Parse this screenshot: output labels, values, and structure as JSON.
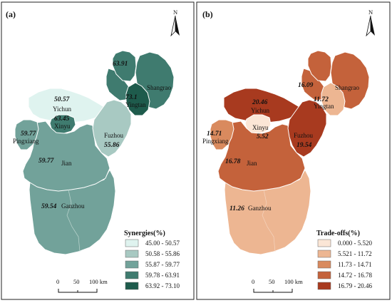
{
  "panels": [
    {
      "tag": "(a)",
      "north": "N",
      "legend_title": "Synergies(%)",
      "legend": [
        {
          "range": "45.00 - 50.57",
          "color": "#dff3ef"
        },
        {
          "range": "50.58 - 55.86",
          "color": "#a8c9c2"
        },
        {
          "range": "55.87 - 59.77",
          "color": "#72a29a"
        },
        {
          "range": "59.78 - 63.91",
          "color": "#3f7b6f"
        },
        {
          "range": "63.92 - 73.10",
          "color": "#1e5b4c"
        }
      ],
      "regions": {
        "shangrao": {
          "name": "Shangrao",
          "value": "63.91",
          "color": "#3f7b6f"
        },
        "yingtan": {
          "name": "Yingtan",
          "value": "73.1",
          "color": "#1e5b4c"
        },
        "yichun": {
          "name": "Yichun",
          "value": "50.57",
          "color": "#dff3ef"
        },
        "xinyu": {
          "name": "Xinyu",
          "value": "63.45",
          "color": "#3f7b6f"
        },
        "pingxiang": {
          "name": "Pingxiang",
          "value": "59.77",
          "color": "#72a29a"
        },
        "fuzhou": {
          "name": "Fuzhou",
          "value": "55.86",
          "color": "#a8c9c2"
        },
        "jian": {
          "name": "Jian",
          "value": "59.77",
          "color": "#72a29a"
        },
        "ganzhou": {
          "name": "Ganzhou",
          "value": "59.54",
          "color": "#72a29a"
        },
        "nanchang": {
          "value": "",
          "color": "#3f7b6f"
        },
        "jingdezhen": {
          "value": "",
          "color": "#3f7b6f"
        }
      },
      "scalebar": [
        "0",
        "50",
        "100 km"
      ]
    },
    {
      "tag": "(b)",
      "north": "N",
      "legend_title": "Trade-offs(%)",
      "legend": [
        {
          "range": "0.000 - 5.520",
          "color": "#fbe6d6"
        },
        {
          "range": "5.521 - 11.72",
          "color": "#edb692"
        },
        {
          "range": "11.73 - 14.71",
          "color": "#d98a5e"
        },
        {
          "range": "14.72 - 16.78",
          "color": "#c4623b"
        },
        {
          "range": "16.79 - 20.46",
          "color": "#a83a1f"
        }
      ],
      "regions": {
        "shangrao": {
          "name": "Shangrao",
          "value": "16.09",
          "color": "#c4623b"
        },
        "yingtan": {
          "name": "Yingtan",
          "value": "11.72",
          "color": "#edb692"
        },
        "yichun": {
          "name": "Yichun",
          "value": "20.46",
          "color": "#a83a1f"
        },
        "xinyu": {
          "name": "Xinyu",
          "value": "5.52",
          "color": "#fbe6d6"
        },
        "pingxiang": {
          "name": "Pingxiang",
          "value": "14.71",
          "color": "#d98a5e"
        },
        "fuzhou": {
          "name": "Fuzhou",
          "value": "19.54",
          "color": "#a83a1f"
        },
        "jian": {
          "name": "Jian",
          "value": "16.78",
          "color": "#c4623b"
        },
        "ganzhou": {
          "name": "Ganzhou",
          "value": "11.26",
          "color": "#edb692"
        },
        "nanchang": {
          "value": "",
          "color": "#c4623b"
        },
        "jingdezhen": {
          "value": "",
          "color": "#c4623b"
        }
      },
      "scalebar": [
        "0",
        "50",
        "100 km"
      ]
    }
  ]
}
